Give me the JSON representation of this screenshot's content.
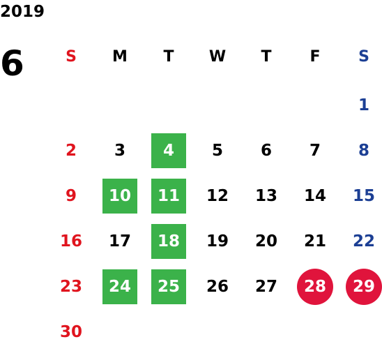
{
  "calendar": {
    "year": "2019",
    "month": "6",
    "colors": {
      "sunday": "#e0141e",
      "saturday": "#1c3f94",
      "weekday": "#000000",
      "green_highlight": "#3bb24a",
      "red_circle": "#e0143c",
      "highlight_text": "#ffffff"
    },
    "weekdays": [
      {
        "label": "S",
        "kind": "sunday"
      },
      {
        "label": "M",
        "kind": "weekday"
      },
      {
        "label": "T",
        "kind": "weekday"
      },
      {
        "label": "W",
        "kind": "weekday"
      },
      {
        "label": "T",
        "kind": "weekday"
      },
      {
        "label": "F",
        "kind": "weekday"
      },
      {
        "label": "S",
        "kind": "saturday"
      }
    ],
    "weeks": [
      [
        null,
        null,
        null,
        null,
        null,
        null,
        {
          "day": "1"
        }
      ],
      [
        {
          "day": "2"
        },
        {
          "day": "3"
        },
        {
          "day": "4",
          "highlight": "green"
        },
        {
          "day": "5"
        },
        {
          "day": "6"
        },
        {
          "day": "7"
        },
        {
          "day": "8"
        }
      ],
      [
        {
          "day": "9"
        },
        {
          "day": "10",
          "highlight": "green"
        },
        {
          "day": "11",
          "highlight": "green"
        },
        {
          "day": "12"
        },
        {
          "day": "13"
        },
        {
          "day": "14"
        },
        {
          "day": "15"
        }
      ],
      [
        {
          "day": "16"
        },
        {
          "day": "17"
        },
        {
          "day": "18",
          "highlight": "green"
        },
        {
          "day": "19"
        },
        {
          "day": "20"
        },
        {
          "day": "21"
        },
        {
          "day": "22"
        }
      ],
      [
        {
          "day": "23"
        },
        {
          "day": "24",
          "highlight": "green"
        },
        {
          "day": "25",
          "highlight": "green"
        },
        {
          "day": "26"
        },
        {
          "day": "27"
        },
        {
          "day": "28",
          "highlight": "red-circle"
        },
        {
          "day": "29",
          "highlight": "red-circle"
        }
      ],
      [
        {
          "day": "30"
        },
        null,
        null,
        null,
        null,
        null,
        null
      ]
    ]
  }
}
